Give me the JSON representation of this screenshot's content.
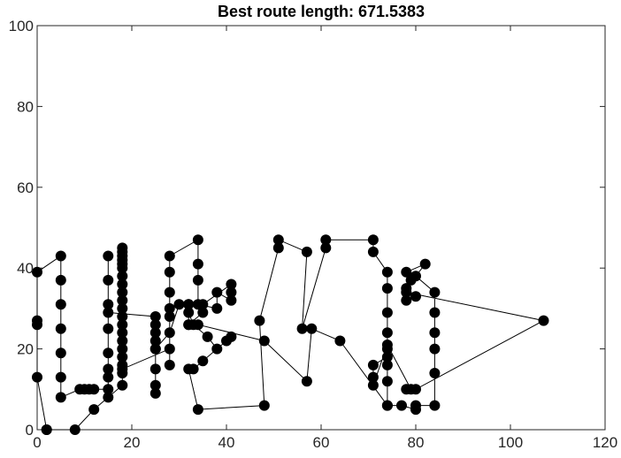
{
  "chart_data": {
    "type": "line",
    "title": "Best route length: 671.5383",
    "xlabel": "",
    "ylabel": "",
    "xlim": [
      0,
      120
    ],
    "ylim": [
      0,
      100
    ],
    "xticks": [
      "0",
      "20",
      "40",
      "60",
      "80",
      "100",
      "120"
    ],
    "yticks": [
      "0",
      "20",
      "40",
      "60",
      "80",
      "100"
    ],
    "grid": false,
    "legend": "none",
    "colors": {
      "route": "#000000",
      "marker": "#000000",
      "axes": "#262626"
    },
    "series": [
      {
        "marker": "filled-circle",
        "x": [
          2,
          8,
          12,
          15,
          18,
          18,
          18,
          18,
          18,
          18,
          18,
          18,
          18,
          18,
          18,
          18,
          18,
          18,
          18,
          18,
          18,
          18,
          18,
          18,
          18,
          28,
          28,
          28,
          28,
          28,
          28,
          28,
          34,
          34,
          34,
          34,
          38,
          38,
          41,
          41,
          41,
          35,
          35,
          32,
          32,
          32,
          33,
          36,
          38,
          40,
          41,
          35,
          33,
          32,
          34,
          48,
          47,
          51,
          51,
          57,
          56,
          61,
          61,
          71,
          71,
          74,
          74,
          74,
          74,
          74,
          74,
          74,
          74,
          77,
          80,
          80,
          84,
          84,
          84,
          84,
          84,
          84,
          80,
          82,
          78,
          79,
          78,
          80,
          78,
          78,
          107,
          80,
          78,
          79,
          74,
          71,
          71,
          71,
          74,
          74,
          64,
          58,
          57,
          48,
          34,
          32,
          32,
          30,
          28,
          25,
          25,
          25,
          25,
          25,
          25,
          25,
          25,
          25,
          15,
          15,
          15,
          15,
          15,
          15,
          15,
          15,
          15,
          12,
          11,
          10,
          9,
          5,
          5,
          5,
          5,
          5,
          5,
          5,
          0,
          0,
          0,
          0,
          2
        ],
        "y": [
          0,
          0,
          5,
          8,
          11,
          14,
          16,
          18,
          20,
          22,
          24,
          26,
          28,
          30,
          32,
          34,
          36,
          38,
          40,
          42,
          44,
          45,
          43,
          41,
          15,
          20,
          16,
          28,
          30,
          34,
          39,
          43,
          47,
          41,
          37,
          31,
          30,
          34,
          32,
          34,
          36,
          31,
          29,
          26,
          31,
          29,
          26,
          23,
          20,
          22,
          23,
          17,
          15,
          15,
          5,
          6,
          27,
          45,
          47,
          44,
          25,
          45,
          47,
          47,
          44,
          39,
          35,
          29,
          24,
          20,
          16,
          12,
          6,
          6,
          5,
          6,
          6,
          14,
          20,
          24,
          29,
          34,
          38,
          41,
          39,
          37,
          35,
          33,
          32,
          34,
          27,
          10,
          10,
          10,
          21,
          11,
          13,
          16,
          18,
          6,
          22,
          25,
          12,
          22,
          26,
          26,
          31,
          31,
          24,
          20,
          9,
          11,
          15,
          20,
          22,
          24,
          26,
          28,
          29,
          31,
          37,
          43,
          25,
          19,
          13,
          15,
          10,
          10,
          10,
          10,
          10,
          8,
          13,
          19,
          25,
          31,
          37,
          43,
          39,
          26,
          27,
          13,
          0
        ]
      }
    ]
  }
}
